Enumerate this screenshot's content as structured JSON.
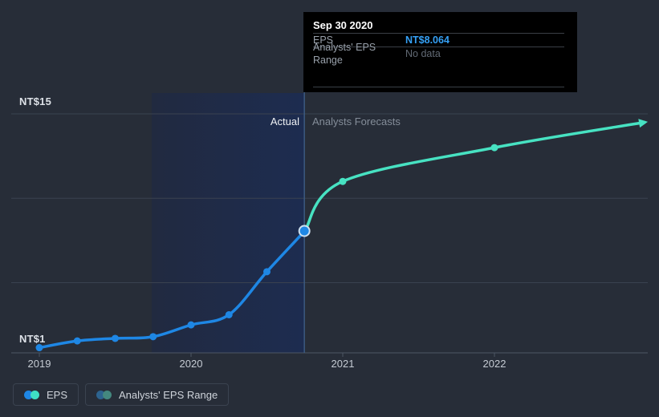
{
  "tooltip": {
    "title": "Sep 30 2020",
    "rows": [
      {
        "label": "EPS",
        "value": "NT$8.064"
      },
      {
        "label": "Analysts' EPS Range",
        "value": "No data"
      }
    ]
  },
  "chart_data": {
    "type": "line",
    "currency_unit": "NT$",
    "x_ticks": [
      {
        "label": "2019",
        "year": 2019
      },
      {
        "label": "2020",
        "year": 2020
      },
      {
        "label": "2021",
        "year": 2021
      },
      {
        "label": "2022",
        "year": 2022
      }
    ],
    "y_axis": {
      "top_label": "NT$15",
      "bottom_label": "NT$1",
      "ymax": 15,
      "ymin": 1,
      "gridline_values": [
        15,
        10,
        5
      ]
    },
    "series": [
      {
        "name": "EPS (Actual)",
        "color": "#1e87e5",
        "x": [
          2019.0,
          2019.25,
          2019.5,
          2019.75,
          2020.0,
          2020.25,
          2020.5,
          2020.75
        ],
        "values": [
          1.15,
          1.55,
          1.7,
          1.8,
          2.5,
          3.1,
          5.65,
          8.064
        ],
        "marker_points": [
          2019.0,
          2019.25,
          2019.5,
          2019.75,
          2020.0,
          2020.25,
          2020.5
        ]
      },
      {
        "name": "EPS (Analysts Forecasts)",
        "color": "#47e2c2",
        "x": [
          2020.75,
          2021.0,
          2022.0,
          2022.99
        ],
        "values": [
          8.064,
          11.0,
          13.0,
          14.5
        ],
        "marker_points": [
          2021.0,
          2022.0
        ],
        "arrow_end": true
      }
    ],
    "highlight_band": {
      "x_start": 2019.74,
      "x_end": 2020.747
    },
    "divider_x": 2020.747,
    "highlight_point": {
      "x": 2020.747,
      "value": 8.064,
      "date": "Sep 30 2020"
    },
    "annotations": {
      "actual_label": "Actual",
      "forecast_label": "Analysts Forecasts"
    }
  },
  "legend": [
    {
      "label": "EPS",
      "colors": [
        "#1e87e5",
        "#3fe0c5"
      ]
    },
    {
      "label": "Analysts' EPS Range",
      "colors": [
        "#2d638f",
        "#44887f"
      ]
    }
  ],
  "colors": {
    "background": "#272d38",
    "gridline": "#3a4250",
    "axis": "#4d5665",
    "divider": "#3c5a80",
    "actual_line": "#1e87e5",
    "forecast_line": "#47e2c2"
  }
}
